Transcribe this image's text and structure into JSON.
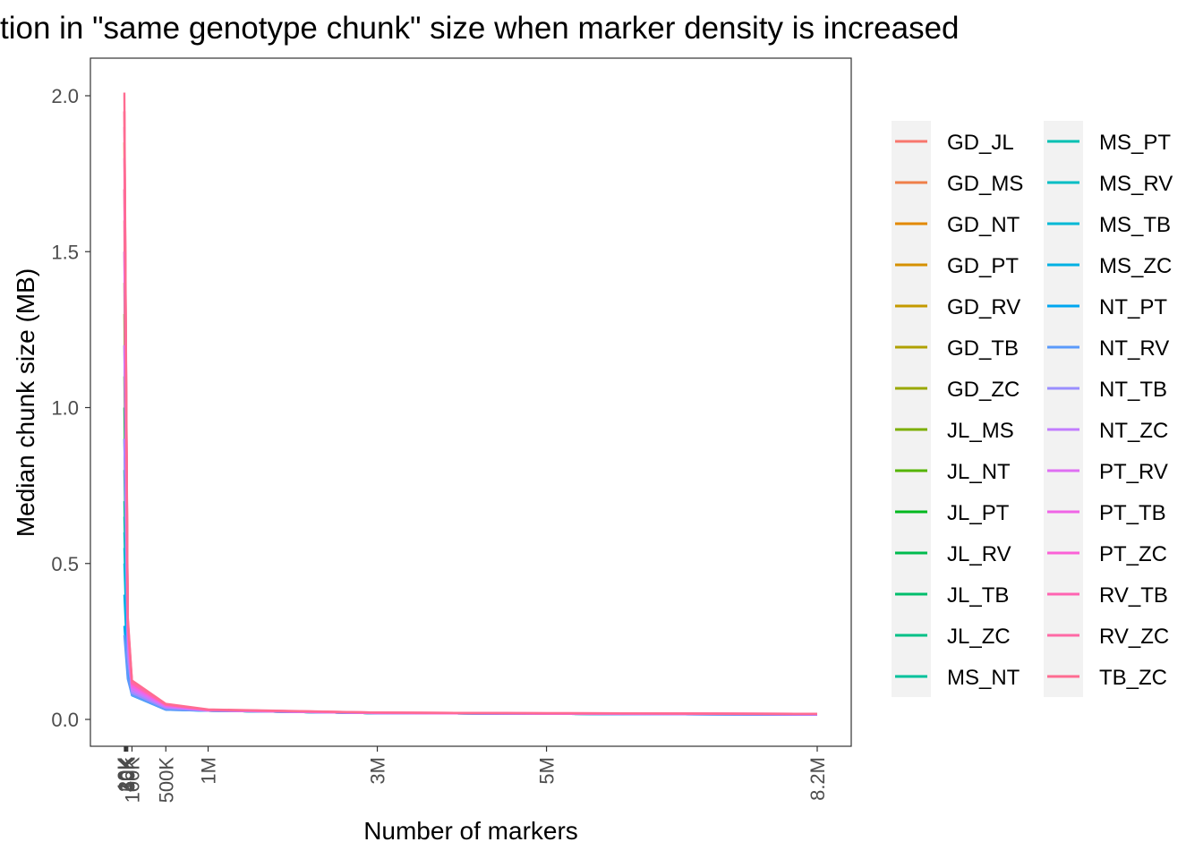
{
  "chart_data": {
    "type": "line",
    "title": "tion in \"same genotype chunk\" size when marker density is increased",
    "xlabel": "Number of markers",
    "ylabel": "Median chunk size (MB)",
    "xlim": [
      0,
      8200000
    ],
    "ylim": [
      0,
      2.0
    ],
    "grid": false,
    "legend_position": "right",
    "x_ticks": [
      {
        "value": 10000,
        "label": "10K"
      },
      {
        "value": 20000,
        "label": "20K"
      },
      {
        "value": 30000,
        "label": "30K"
      },
      {
        "value": 40000,
        "label": "40K"
      },
      {
        "value": 50000,
        "label": "50K"
      },
      {
        "value": 100000,
        "label": "100K"
      },
      {
        "value": 500000,
        "label": "500K"
      },
      {
        "value": 1000000,
        "label": "1M"
      },
      {
        "value": 3000000,
        "label": "3M"
      },
      {
        "value": 5000000,
        "label": "5M"
      },
      {
        "value": 8200000,
        "label": "8.2M"
      }
    ],
    "y_ticks": [
      {
        "value": 0.0,
        "label": "0.0"
      },
      {
        "value": 0.5,
        "label": "0.5"
      },
      {
        "value": 1.0,
        "label": "1.0"
      },
      {
        "value": 1.5,
        "label": "1.5"
      },
      {
        "value": 2.0,
        "label": "2.0"
      }
    ],
    "x": [
      10000,
      50000,
      100000,
      500000,
      1000000,
      3000000,
      5000000,
      8200000
    ],
    "series": [
      {
        "name": "GD_JL",
        "color": "#F8766D",
        "values": [
          1.95,
          0.3,
          0.11,
          0.045,
          0.03,
          0.021,
          0.019,
          0.017
        ]
      },
      {
        "name": "GD_MS",
        "color": "#EF7F49",
        "values": [
          1.6,
          0.28,
          0.1,
          0.043,
          0.03,
          0.021,
          0.019,
          0.017
        ]
      },
      {
        "name": "GD_NT",
        "color": "#E38900",
        "values": [
          1.7,
          0.29,
          0.105,
          0.044,
          0.03,
          0.021,
          0.019,
          0.017
        ]
      },
      {
        "name": "GD_PT",
        "color": "#D59100",
        "values": [
          1.85,
          0.3,
          0.11,
          0.046,
          0.03,
          0.021,
          0.019,
          0.017
        ]
      },
      {
        "name": "GD_RV",
        "color": "#C49A00",
        "values": [
          1.5,
          0.27,
          0.1,
          0.042,
          0.029,
          0.021,
          0.019,
          0.017
        ]
      },
      {
        "name": "GD_TB",
        "color": "#B0A100",
        "values": [
          1.4,
          0.26,
          0.095,
          0.041,
          0.029,
          0.021,
          0.019,
          0.016
        ]
      },
      {
        "name": "GD_ZC",
        "color": "#99A800",
        "values": [
          1.3,
          0.25,
          0.09,
          0.04,
          0.029,
          0.021,
          0.018,
          0.016
        ]
      },
      {
        "name": "JL_MS",
        "color": "#7CAE00",
        "values": [
          1.2,
          0.24,
          0.09,
          0.039,
          0.029,
          0.02,
          0.018,
          0.016
        ]
      },
      {
        "name": "JL_NT",
        "color": "#55B400",
        "values": [
          1.1,
          0.24,
          0.088,
          0.038,
          0.029,
          0.02,
          0.018,
          0.016
        ]
      },
      {
        "name": "JL_PT",
        "color": "#00B81F",
        "values": [
          1.0,
          0.23,
          0.087,
          0.037,
          0.028,
          0.02,
          0.018,
          0.016
        ]
      },
      {
        "name": "JL_RV",
        "color": "#00BB4E",
        "values": [
          0.9,
          0.22,
          0.086,
          0.036,
          0.028,
          0.02,
          0.018,
          0.016
        ]
      },
      {
        "name": "JL_TB",
        "color": "#00BE6C",
        "values": [
          0.8,
          0.21,
          0.085,
          0.035,
          0.028,
          0.02,
          0.018,
          0.016
        ]
      },
      {
        "name": "JL_ZC",
        "color": "#00C086",
        "values": [
          0.7,
          0.2,
          0.084,
          0.034,
          0.028,
          0.02,
          0.018,
          0.016
        ]
      },
      {
        "name": "MS_NT",
        "color": "#00C19C",
        "values": [
          0.65,
          0.2,
          0.083,
          0.034,
          0.028,
          0.02,
          0.018,
          0.016
        ]
      },
      {
        "name": "MS_PT",
        "color": "#00C0B2",
        "values": [
          0.6,
          0.19,
          0.082,
          0.033,
          0.028,
          0.02,
          0.018,
          0.015
        ]
      },
      {
        "name": "MS_RV",
        "color": "#00BDC4",
        "values": [
          0.55,
          0.18,
          0.081,
          0.033,
          0.028,
          0.02,
          0.018,
          0.015
        ]
      },
      {
        "name": "MS_TB",
        "color": "#00B8D5",
        "values": [
          0.5,
          0.17,
          0.08,
          0.032,
          0.028,
          0.02,
          0.018,
          0.015
        ]
      },
      {
        "name": "MS_ZC",
        "color": "#00B0E3",
        "values": [
          0.4,
          0.16,
          0.079,
          0.032,
          0.028,
          0.02,
          0.018,
          0.015
        ]
      },
      {
        "name": "NT_PT",
        "color": "#00A6F0",
        "values": [
          0.3,
          0.14,
          0.077,
          0.031,
          0.028,
          0.02,
          0.018,
          0.015
        ]
      },
      {
        "name": "NT_RV",
        "color": "#5B9AFB",
        "values": [
          0.27,
          0.13,
          0.078,
          0.031,
          0.028,
          0.02,
          0.018,
          0.015
        ]
      },
      {
        "name": "NT_TB",
        "color": "#9A8EFF",
        "values": [
          0.9,
          0.2,
          0.085,
          0.036,
          0.028,
          0.02,
          0.018,
          0.016
        ]
      },
      {
        "name": "NT_ZC",
        "color": "#C27DFF",
        "values": [
          1.2,
          0.24,
          0.092,
          0.04,
          0.029,
          0.02,
          0.018,
          0.016
        ]
      },
      {
        "name": "PT_RV",
        "color": "#DF6FF3",
        "values": [
          1.5,
          0.27,
          0.1,
          0.043,
          0.029,
          0.021,
          0.019,
          0.017
        ]
      },
      {
        "name": "PT_TB",
        "color": "#F064E6",
        "values": [
          1.7,
          0.29,
          0.107,
          0.045,
          0.03,
          0.021,
          0.019,
          0.017
        ]
      },
      {
        "name": "PT_ZC",
        "color": "#FB61D7",
        "values": [
          1.8,
          0.3,
          0.11,
          0.046,
          0.03,
          0.021,
          0.019,
          0.017
        ]
      },
      {
        "name": "RV_TB",
        "color": "#FF64B2",
        "values": [
          1.9,
          0.31,
          0.115,
          0.047,
          0.031,
          0.022,
          0.02,
          0.018
        ]
      },
      {
        "name": "RV_ZC",
        "color": "#FF69A5",
        "values": [
          1.95,
          0.32,
          0.12,
          0.048,
          0.031,
          0.022,
          0.02,
          0.018
        ]
      },
      {
        "name": "TB_ZC",
        "color": "#FF6C91",
        "values": [
          2.01,
          0.33,
          0.125,
          0.05,
          0.032,
          0.022,
          0.02,
          0.018
        ]
      }
    ]
  }
}
